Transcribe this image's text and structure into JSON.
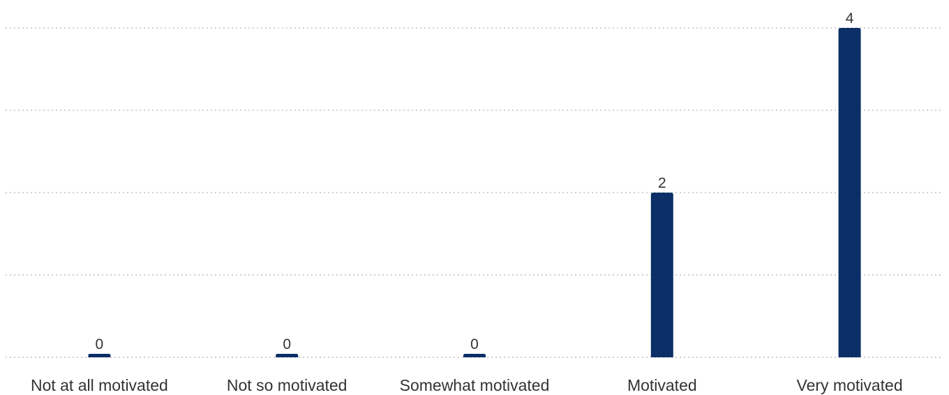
{
  "chart_data": {
    "type": "bar",
    "categories": [
      "Not at all motivated",
      "Not so motivated",
      "Somewhat motivated",
      "Motivated",
      "Very motivated"
    ],
    "values": [
      0,
      0,
      0,
      2,
      4
    ],
    "ylim": [
      0,
      4
    ],
    "grid": true,
    "data_labels": true,
    "bar_color": "#0b2f66"
  }
}
